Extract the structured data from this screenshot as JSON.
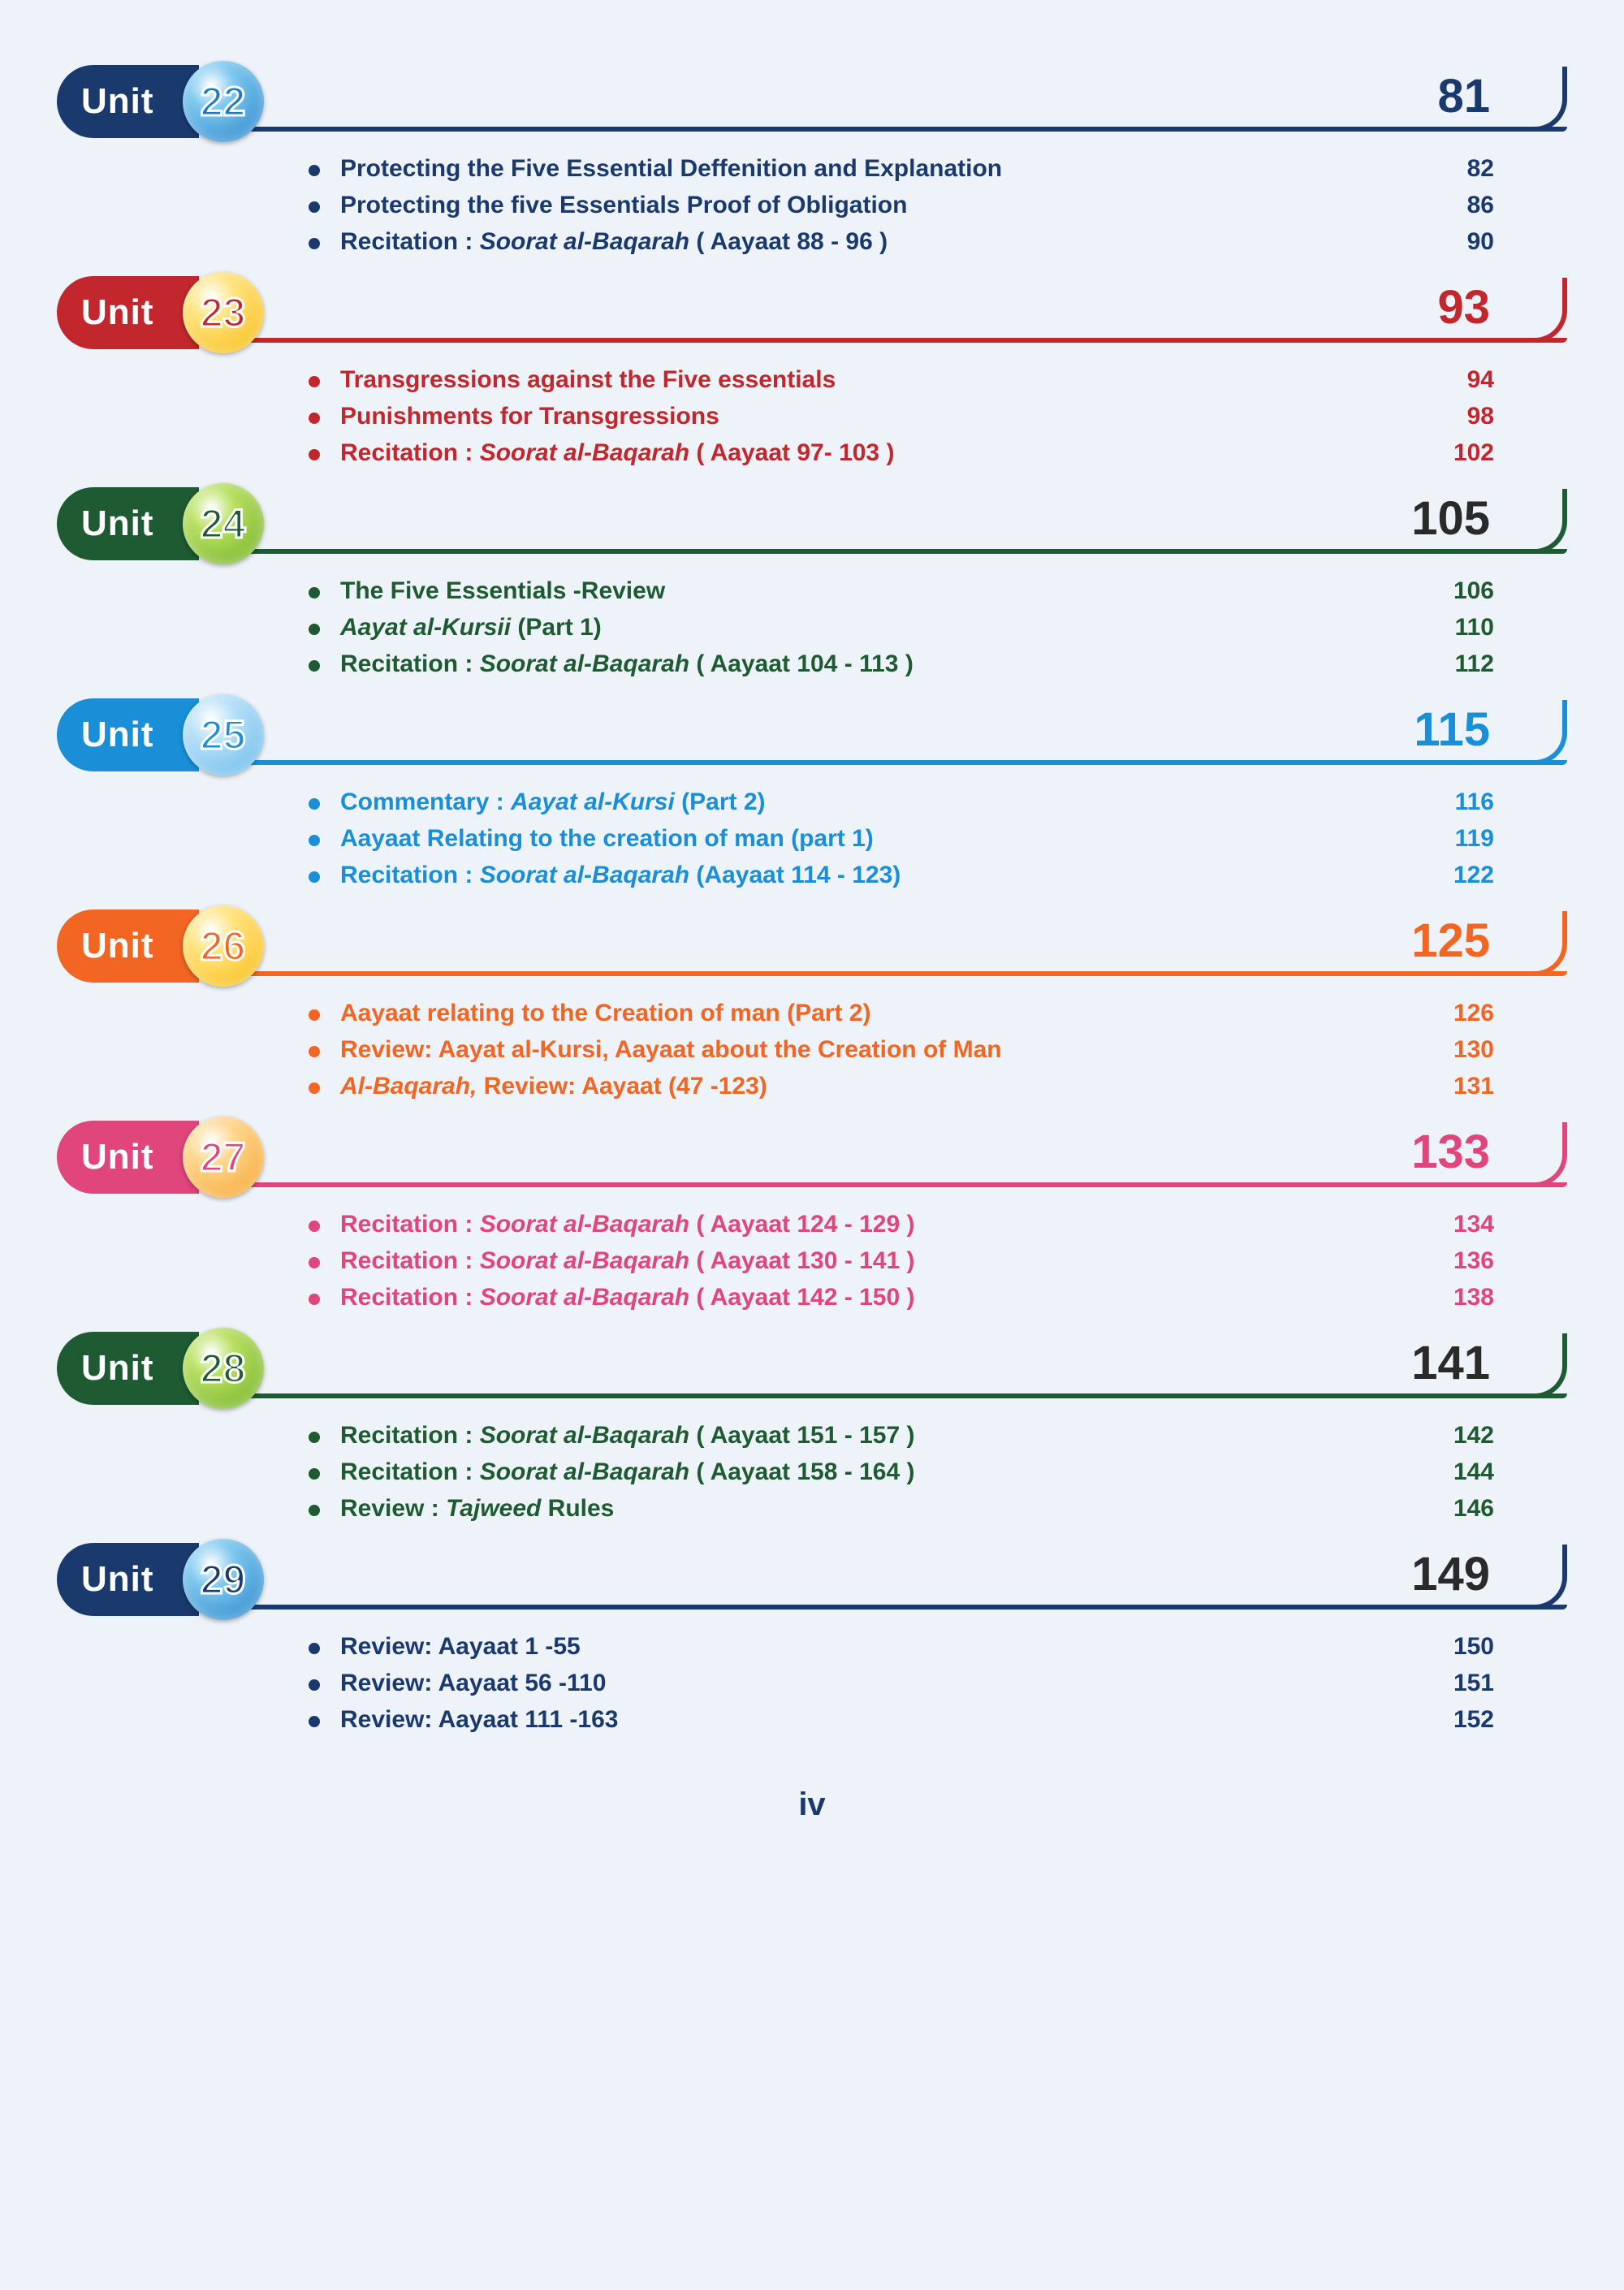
{
  "page_background": "#eef3f9",
  "page_number": "iv",
  "unit_label": "Unit",
  "units": [
    {
      "number": "22",
      "page": "81",
      "tab_color": "#1a3a6e",
      "line_color": "#1a3a6e",
      "text_color": "#1a3a6e",
      "page_color": "#1a3a6e",
      "circle_bg": "radial-gradient(circle at 35% 30%, #ffffff 0%, #7ec8f0 30%, #1a7bc4 100%)",
      "circle_text_color": "#1a7bc4",
      "bullet_color": "#1a3a6e",
      "items": [
        {
          "text": "Protecting the Five Essential Deffenition and Explanation",
          "page": "82"
        },
        {
          "text": "Protecting the five Essentials Proof of Obligation",
          "page": "86"
        },
        {
          "text_parts": [
            {
              "t": "Recitation : "
            },
            {
              "t": "Soorat al-Baqarah",
              "i": true
            },
            {
              "t": " ( Aayaat 88 - 96 )"
            }
          ],
          "page": "90"
        }
      ]
    },
    {
      "number": "23",
      "page": "93",
      "tab_color": "#c1272d",
      "line_color": "#c1272d",
      "text_color": "#c1272d",
      "page_color": "#c1272d",
      "circle_bg": "radial-gradient(circle at 35% 30%, #ffffff 0%, #ffe480 30%, #f7b500 100%)",
      "circle_text_color": "#c1272d",
      "bullet_color": "#c1272d",
      "items": [
        {
          "text": "Transgressions against the Five essentials",
          "page": "94"
        },
        {
          "text": "Punishments for Transgressions",
          "page": "98"
        },
        {
          "text_parts": [
            {
              "t": "Recitation : "
            },
            {
              "t": "Soorat al-Baqarah",
              "i": true
            },
            {
              "t": " ( Aayaat 97- 103 )"
            }
          ],
          "page": "102"
        }
      ]
    },
    {
      "number": "24",
      "page": "105",
      "tab_color": "#1e5a32",
      "line_color": "#1e5a32",
      "text_color": "#1e5a32",
      "page_color": "#2a2a2a",
      "circle_bg": "radial-gradient(circle at 35% 30%, #ffffff 0%, #b8e060 30%, #6aaa1e 100%)",
      "circle_text_color": "#1e5a32",
      "bullet_color": "#1e5a32",
      "items": [
        {
          "text": "The Five Essentials -Review",
          "page": "106"
        },
        {
          "text_parts": [
            {
              "t": "Aayat al-Kursii",
              "i": true
            },
            {
              "t": " (Part 1)"
            }
          ],
          "page": "110"
        },
        {
          "text_parts": [
            {
              "t": "Recitation : "
            },
            {
              "t": "Soorat al-Baqarah",
              "i": true
            },
            {
              "t": " ( Aayaat 104 - 113 )"
            }
          ],
          "page": "112"
        }
      ]
    },
    {
      "number": "25",
      "page": "115",
      "tab_color": "#1a8fd8",
      "line_color": "#1a8fd8",
      "text_color": "#1a8fd8",
      "page_color": "#1a8fd8",
      "circle_bg": "radial-gradient(circle at 35% 30%, #ffffff 0%, #b8e0f8 30%, #5ab4e8 100%)",
      "circle_text_color": "#1a8fd8",
      "bullet_color": "#1a8fd8",
      "items": [
        {
          "text_parts": [
            {
              "t": "Commentary : "
            },
            {
              "t": "Aayat al-Kursi",
              "i": true
            },
            {
              "t": " (Part 2)"
            }
          ],
          "page": "116"
        },
        {
          "text": "Aayaat Relating to the creation of man (part 1)",
          "page": "119"
        },
        {
          "text_parts": [
            {
              "t": "Recitation : "
            },
            {
              "t": "Soorat al-Baqarah",
              "i": true
            },
            {
              "t": "  (Aayaat 114 - 123)"
            }
          ],
          "page": "122"
        }
      ]
    },
    {
      "number": "26",
      "page": "125",
      "tab_color": "#f26522",
      "line_color": "#f26522",
      "text_color": "#f26522",
      "page_color": "#f26522",
      "circle_bg": "radial-gradient(circle at 35% 30%, #ffffff 0%, #ffe480 30%, #f7b500 100%)",
      "circle_text_color": "#f26522",
      "bullet_color": "#f26522",
      "items": [
        {
          "text": "Aayaat relating to the Creation of man  (Part 2)",
          "page": "126"
        },
        {
          "text": "Review: Aayat al-Kursi, Aayaat about the Creation of Man",
          "page": "130"
        },
        {
          "text_parts": [
            {
              "t": "Al-Baqarah,",
              "i": true
            },
            {
              "t": " Review: Aayaat (47 -123)"
            }
          ],
          "page": "131"
        }
      ]
    },
    {
      "number": "27",
      "page": "133",
      "tab_color": "#e0457b",
      "line_color": "#e0457b",
      "text_color": "#e0457b",
      "page_color": "#e0457b",
      "circle_bg": "radial-gradient(circle at 35% 30%, #ffffff 0%, #ffd890 30%, #f49b1e 100%)",
      "circle_text_color": "#e0457b",
      "bullet_color": "#e0457b",
      "items": [
        {
          "text_parts": [
            {
              "t": "Recitation : "
            },
            {
              "t": "Soorat al-Baqarah",
              "i": true
            },
            {
              "t": " ( Aayaat 124 - 129 )"
            }
          ],
          "page": "134"
        },
        {
          "text_parts": [
            {
              "t": "Recitation : "
            },
            {
              "t": "Soorat al-Baqarah",
              "i": true
            },
            {
              "t": " ( Aayaat 130 - 141 )"
            }
          ],
          "page": "136"
        },
        {
          "text_parts": [
            {
              "t": "Recitation : "
            },
            {
              "t": "Soorat al-Baqarah",
              "i": true
            },
            {
              "t": " ( Aayaat 142 - 150 )"
            }
          ],
          "page": "138"
        }
      ]
    },
    {
      "number": "28",
      "page": "141",
      "tab_color": "#1e5a32",
      "line_color": "#1e5a32",
      "text_color": "#1e5a32",
      "page_color": "#2a2a2a",
      "circle_bg": "radial-gradient(circle at 35% 30%, #ffffff 0%, #b8e060 30%, #6aaa1e 100%)",
      "circle_text_color": "#1e5a32",
      "bullet_color": "#1e5a32",
      "items": [
        {
          "text_parts": [
            {
              "t": "Recitation : "
            },
            {
              "t": "Soorat al-Baqarah",
              "i": true
            },
            {
              "t": " ( Aayaat 151 - 157 )"
            }
          ],
          "page": "142"
        },
        {
          "text_parts": [
            {
              "t": "Recitation : "
            },
            {
              "t": "Soorat al-Baqarah",
              "i": true
            },
            {
              "t": " ( Aayaat 158 - 164 )"
            }
          ],
          "page": "144"
        },
        {
          "text_parts": [
            {
              "t": "Review : "
            },
            {
              "t": "Tajweed",
              "i": true
            },
            {
              "t": " Rules"
            }
          ],
          "page": "146"
        }
      ]
    },
    {
      "number": "29",
      "page": "149",
      "tab_color": "#1a3a6e",
      "line_color": "#1a3a6e",
      "text_color": "#1a3a6e",
      "page_color": "#2a2a2a",
      "circle_bg": "radial-gradient(circle at 35% 30%, #ffffff 0%, #7ec8f0 30%, #1a7bc4 100%)",
      "circle_text_color": "#1a3a6e",
      "bullet_color": "#1a3a6e",
      "items": [
        {
          "text": "Review: Aayaat 1 -55",
          "page": "150"
        },
        {
          "text": "Review: Aayaat 56 -110",
          "page": "151"
        },
        {
          "text": "Review: Aayaat 111 -163",
          "page": "152"
        }
      ]
    }
  ]
}
